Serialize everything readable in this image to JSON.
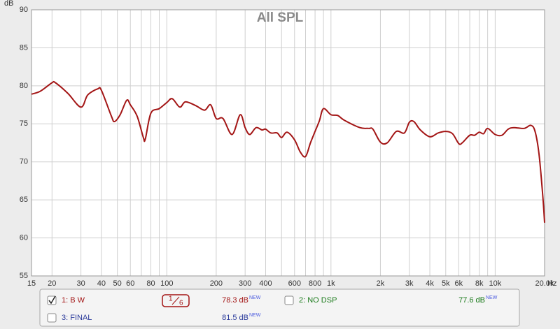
{
  "chart_data": {
    "type": "line",
    "title": "All SPL",
    "y_unit": "dB",
    "x_unit": "Hz",
    "x": [
      15,
      17,
      20,
      21,
      25,
      30,
      33,
      38,
      40,
      46,
      48,
      52,
      57,
      60,
      66,
      72,
      74,
      80,
      90,
      100,
      108,
      120,
      130,
      150,
      170,
      185,
      200,
      220,
      250,
      280,
      300,
      320,
      350,
      380,
      400,
      430,
      470,
      500,
      540,
      600,
      650,
      700,
      750,
      800,
      850,
      900,
      1000,
      1100,
      1200,
      1500,
      1700,
      1800,
      2000,
      2200,
      2500,
      2800,
      3000,
      3200,
      3500,
      4000,
      4500,
      5000,
      5500,
      6000,
      6300,
      7000,
      7500,
      8000,
      8500,
      9000,
      10000,
      11000,
      12000,
      13000,
      15000,
      16500,
      17500,
      18500,
      19500,
      20000
    ],
    "series": [
      {
        "color": "#a31515",
        "values": [
          78.9,
          79.3,
          80.4,
          80.4,
          79,
          77.2,
          78.8,
          79.6,
          79.4,
          76,
          75.3,
          76.2,
          78.1,
          77.5,
          76,
          73.2,
          73,
          76.4,
          77,
          77.8,
          78.3,
          77.2,
          77.9,
          77.4,
          76.8,
          77.5,
          75.7,
          75.7,
          73.6,
          76.2,
          74.5,
          73.6,
          74.5,
          74.2,
          74.3,
          73.8,
          73.8,
          73.2,
          73.9,
          72.9,
          71.3,
          70.7,
          72.5,
          74,
          75.4,
          77,
          76.2,
          76.1,
          75.5,
          74.5,
          74.4,
          74.3,
          72.6,
          72.5,
          74,
          73.8,
          75.2,
          75.3,
          74.2,
          73.3,
          73.8,
          74,
          73.7,
          72.4,
          72.5,
          73.5,
          73.5,
          73.9,
          73.7,
          74.4,
          73.6,
          73.5,
          74.3,
          74.5,
          74.4,
          74.8,
          74,
          71,
          65.5,
          62
        ]
      }
    ],
    "xlim": [
      15,
      20000
    ],
    "log_x": true,
    "xticks": [
      15,
      20,
      30,
      40,
      50,
      60,
      80,
      100,
      200,
      300,
      400,
      600,
      800,
      {
        "value": 1000,
        "label": "1k"
      },
      {
        "value": 2000,
        "label": "2k"
      },
      {
        "value": 3000,
        "label": "3k"
      },
      {
        "value": 4000,
        "label": "4k"
      },
      {
        "value": 5000,
        "label": "5k"
      },
      {
        "value": 6000,
        "label": "6k"
      },
      {
        "value": 8000,
        "label": "8k"
      },
      {
        "value": 10000,
        "label": "10k"
      },
      {
        "value": 20000,
        "label": "20.0k"
      }
    ],
    "x_minor_grid": [
      70,
      90,
      500,
      700,
      900,
      7000,
      9000
    ],
    "ylim": [
      55,
      90
    ],
    "yticks": [
      55,
      60,
      65,
      70,
      75,
      80,
      85,
      90
    ],
    "grid": true
  },
  "legend_panel": {
    "smoothing": {
      "num": "1",
      "den": "6"
    },
    "entries": [
      {
        "label": "1: B W",
        "checked": true,
        "color": "#a31515",
        "level": "78.3 dB",
        "level_color": "#a31515",
        "badge": "NEW"
      },
      {
        "label": "2: NO DSP",
        "checked": false,
        "color": "#1a7a1a",
        "level": "77.6 dB",
        "level_color": "#1a7a1a",
        "badge": "NEW"
      },
      {
        "label": "3: FINAL",
        "checked": false,
        "color": "#2a3a9a",
        "level": "81.5 dB",
        "level_color": "#2a3a9a",
        "badge": "NEW"
      }
    ]
  }
}
